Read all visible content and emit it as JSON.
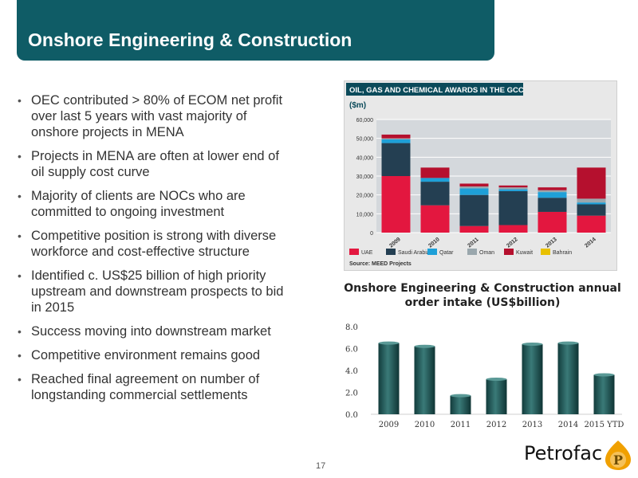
{
  "slide": {
    "title": "Onshore Engineering & Construction",
    "page_number": "17",
    "bullets": [
      "OEC contributed > 80% of ECOM net profit over last 5 years with vast majority of onshore projects in MENA",
      "Projects in MENA are often at lower end of oil supply cost curve",
      "Majority of clients are NOCs who are committed to ongoing investment",
      "Competitive position is strong with diverse workforce and cost-effective structure",
      "Identified c. US$25 billion of high priority upstream and downstream prospects to bid in 2015",
      "Success moving into downstream market",
      "Competitive environment remains good",
      "Reached final agreement on number of longstanding commercial settlements"
    ],
    "logo_text": "Petrofac"
  },
  "colors": {
    "title_bar": "#0f5c66",
    "gcc_header": "#0b4a5a",
    "gcc_plot_bg": "#d4d8dc",
    "order_bar": "#1f5a5a",
    "logo_orange": "#f0a000"
  },
  "chart_data": [
    {
      "type": "bar",
      "stacked": true,
      "title": "OIL, GAS AND CHEMICAL AWARDS IN THE GCC",
      "ylabel": "($m)",
      "source": "Source: MEED Projects",
      "categories": [
        "2009",
        "2010",
        "2011",
        "2012",
        "2013",
        "2014"
      ],
      "ylim": [
        0,
        60000
      ],
      "yticks": [
        "0",
        "10,000",
        "20,000",
        "30,000",
        "40,000",
        "50,000",
        "60,000"
      ],
      "legend_position": "bottom",
      "grid": true,
      "series": [
        {
          "name": "UAE",
          "color": "#e3173f",
          "values": [
            30000,
            14500,
            3500,
            4000,
            11000,
            9000
          ]
        },
        {
          "name": "Saudi Arabia",
          "color": "#243f52",
          "values": [
            17500,
            12500,
            16500,
            18000,
            7500,
            6000
          ]
        },
        {
          "name": "Qatar",
          "color": "#1ea0d8",
          "values": [
            2000,
            2000,
            3500,
            1000,
            3000,
            1000
          ]
        },
        {
          "name": "Oman",
          "color": "#9aa7ad",
          "values": [
            500,
            0,
            1000,
            1000,
            1000,
            2000
          ]
        },
        {
          "name": "Kuwait",
          "color": "#b5102e",
          "values": [
            2000,
            5500,
            1500,
            1000,
            1500,
            16500
          ]
        },
        {
          "name": "Bahrain",
          "color": "#e8c000",
          "values": [
            0,
            0,
            0,
            0,
            0,
            0
          ]
        }
      ]
    },
    {
      "type": "bar",
      "title": "Onshore Engineering & Construction annual order intake (US$billion)",
      "categories": [
        "2009",
        "2010",
        "2011",
        "2012",
        "2013",
        "2014",
        "2015 YTD"
      ],
      "values": [
        6.5,
        6.2,
        1.7,
        3.2,
        6.4,
        6.5,
        3.6
      ],
      "ylim": [
        0,
        8
      ],
      "yticks": [
        "0.0",
        "2.0",
        "4.0",
        "6.0",
        "8.0"
      ],
      "grid": false
    }
  ]
}
